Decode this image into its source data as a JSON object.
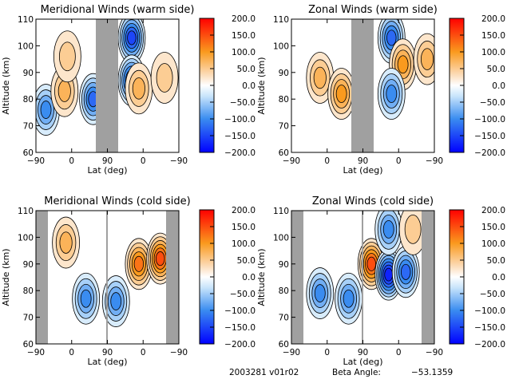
{
  "footer": {
    "date_version": "2003281 v01r02",
    "beta_label": "Beta Angle:",
    "beta_value": "-53.1359"
  },
  "chart_data": [
    {
      "type": "heatmap",
      "id": "meridional-warm",
      "title": "Meridional Winds (warm side)",
      "xlabel": "Lat (deg)",
      "ylabel": "Altitude (km)",
      "xticks": [
        "-90",
        "0",
        "90",
        "0",
        "-90"
      ],
      "yticks": [
        60,
        70,
        80,
        90,
        100,
        110
      ],
      "ylim": [
        60,
        110
      ],
      "masked_regions": [
        {
          "from_lat": "70",
          "to_lat": "90 (descending)",
          "side": "center"
        }
      ],
      "colorbar": {
        "ticks": [
          "200.0",
          "150.0",
          "100.0",
          "50.0",
          "0.0",
          "-50.0",
          "-100.0",
          "-150.0",
          "-200.0"
        ],
        "range": [
          -200,
          200
        ]
      },
      "features": [
        {
          "lat_pos": 0.07,
          "alt": 76,
          "value": -90
        },
        {
          "lat_pos": 0.2,
          "alt": 83,
          "value": 80
        },
        {
          "lat_pos": 0.22,
          "alt": 96,
          "value": 60
        },
        {
          "lat_pos": 0.4,
          "alt": 80,
          "value": -120
        },
        {
          "lat_pos": 0.67,
          "alt": 103,
          "value": -140
        },
        {
          "lat_pos": 0.67,
          "alt": 87,
          "value": -150
        },
        {
          "lat_pos": 0.72,
          "alt": 84,
          "value": 80
        },
        {
          "lat_pos": 0.9,
          "alt": 88,
          "value": 60
        }
      ]
    },
    {
      "type": "heatmap",
      "id": "zonal-warm",
      "title": "Zonal Winds (warm side)",
      "xlabel": "Lat (deg)",
      "ylabel": "Altitude (km)",
      "xticks": [
        "-90",
        "0",
        "90",
        "0",
        "-90"
      ],
      "yticks": [
        60,
        70,
        80,
        90,
        100,
        110
      ],
      "ylim": [
        60,
        110
      ],
      "masked_regions": [
        {
          "from_lat": "70",
          "to_lat": "90 (descending)",
          "side": "center"
        }
      ],
      "colorbar": {
        "ticks": [
          "200.0",
          "150.0",
          "100.0",
          "50.0",
          "0.0",
          "-50.0",
          "-100.0",
          "-150.0",
          "-200.0"
        ],
        "range": [
          -200,
          200
        ]
      },
      "features": [
        {
          "lat_pos": 0.2,
          "alt": 88,
          "value": 70
        },
        {
          "lat_pos": 0.35,
          "alt": 82,
          "value": 90
        },
        {
          "lat_pos": 0.7,
          "alt": 103,
          "value": -130
        },
        {
          "lat_pos": 0.78,
          "alt": 93,
          "value": 110
        },
        {
          "lat_pos": 0.7,
          "alt": 82,
          "value": -110
        },
        {
          "lat_pos": 0.95,
          "alt": 95,
          "value": 70
        }
      ]
    },
    {
      "type": "heatmap",
      "id": "meridional-cold",
      "title": "Meridional Winds (cold side)",
      "xlabel": "Lat (deg)",
      "ylabel": "Altitude (km)",
      "xticks": [
        "-90",
        "0",
        "90",
        "0",
        "-90"
      ],
      "yticks": [
        60,
        70,
        80,
        90,
        100,
        110
      ],
      "ylim": [
        60,
        110
      ],
      "masked_regions": [
        {
          "side": "left"
        },
        {
          "side": "right"
        }
      ],
      "colorbar": {
        "ticks": [
          "200.0",
          "150.0",
          "100.0",
          "50.0",
          "0.0",
          "-50.0",
          "-100.0",
          "-150.0",
          "-200.0"
        ],
        "range": [
          -200,
          200
        ]
      },
      "features": [
        {
          "lat_pos": 0.21,
          "alt": 98,
          "value": 70
        },
        {
          "lat_pos": 0.35,
          "alt": 77,
          "value": -90
        },
        {
          "lat_pos": 0.56,
          "alt": 76,
          "value": -90
        },
        {
          "lat_pos": 0.72,
          "alt": 90,
          "value": 130
        },
        {
          "lat_pos": 0.87,
          "alt": 92,
          "value": 160
        }
      ]
    },
    {
      "type": "heatmap",
      "id": "zonal-cold",
      "title": "Zonal Winds (cold side)",
      "xlabel": "Lat (deg)",
      "ylabel": "Altitude (km)",
      "xticks": [
        "-90",
        "0",
        "90",
        "0",
        "-90"
      ],
      "yticks": [
        60,
        70,
        80,
        90,
        100,
        110
      ],
      "ylim": [
        60,
        110
      ],
      "masked_regions": [
        {
          "side": "left"
        },
        {
          "side": "right"
        }
      ],
      "colorbar": {
        "ticks": [
          "200.0",
          "150.0",
          "100.0",
          "50.0",
          "0.0",
          "-50.0",
          "-100.0",
          "-150.0",
          "-200.0"
        ],
        "range": [
          -200,
          200
        ]
      },
      "features": [
        {
          "lat_pos": 0.2,
          "alt": 79,
          "value": -110
        },
        {
          "lat_pos": 0.4,
          "alt": 77,
          "value": -90
        },
        {
          "lat_pos": 0.56,
          "alt": 90,
          "value": 150
        },
        {
          "lat_pos": 0.68,
          "alt": 86,
          "value": -170
        },
        {
          "lat_pos": 0.8,
          "alt": 87,
          "value": -130
        },
        {
          "lat_pos": 0.68,
          "alt": 103,
          "value": -90
        },
        {
          "lat_pos": 0.85,
          "alt": 103,
          "value": 40
        }
      ]
    }
  ]
}
